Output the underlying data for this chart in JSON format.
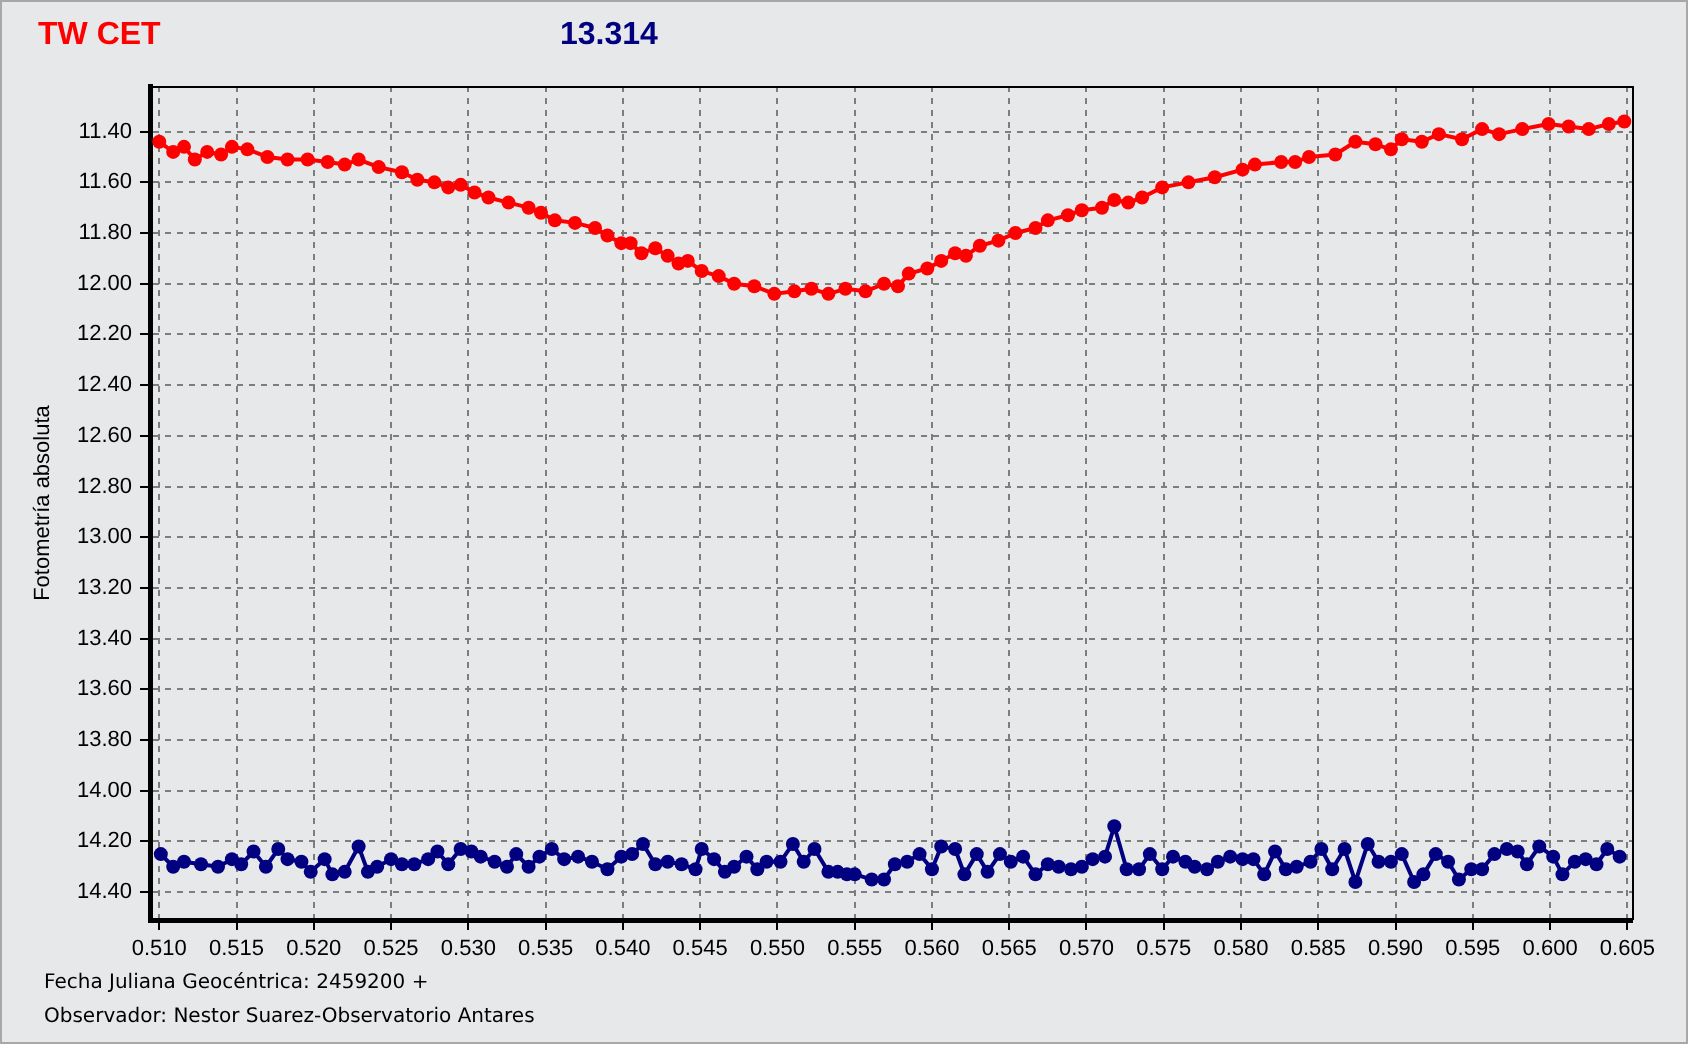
{
  "chart_data": {
    "type": "line",
    "title": "TW CET",
    "subtitle": "13.314",
    "ylabel": "Fotometría absoluta",
    "annotations": [
      "Fecha Juliana Geocéntrica: 2459200 +",
      "Observador: Nestor Suarez-Observatorio Antares"
    ],
    "xlim": [
      0.5094,
      0.6053
    ],
    "xticks": [
      {
        "value": 0.51,
        "label": "0.510"
      },
      {
        "value": 0.515,
        "label": "0.515"
      },
      {
        "value": 0.52,
        "label": "0.520"
      },
      {
        "value": 0.525,
        "label": "0.525"
      },
      {
        "value": 0.53,
        "label": "0.530"
      },
      {
        "value": 0.535,
        "label": "0.535"
      },
      {
        "value": 0.54,
        "label": "0.540"
      },
      {
        "value": 0.545,
        "label": "0.545"
      },
      {
        "value": 0.55,
        "label": "0.550"
      },
      {
        "value": 0.555,
        "label": "0.555"
      },
      {
        "value": 0.56,
        "label": "0.560"
      },
      {
        "value": 0.565,
        "label": "0.565"
      },
      {
        "value": 0.57,
        "label": "0.570"
      },
      {
        "value": 0.575,
        "label": "0.575"
      },
      {
        "value": 0.58,
        "label": "0.580"
      },
      {
        "value": 0.585,
        "label": "0.585"
      },
      {
        "value": 0.59,
        "label": "0.590"
      },
      {
        "value": 0.595,
        "label": "0.595"
      },
      {
        "value": 0.6,
        "label": "0.600"
      },
      {
        "value": 0.605,
        "label": "0.605"
      }
    ],
    "ylim": [
      14.51,
      11.22
    ],
    "yticks": [
      {
        "value": 11.4,
        "label": "11.40"
      },
      {
        "value": 11.6,
        "label": "11.60"
      },
      {
        "value": 11.8,
        "label": "11.80"
      },
      {
        "value": 12.0,
        "label": "12.00"
      },
      {
        "value": 12.2,
        "label": "12.20"
      },
      {
        "value": 12.4,
        "label": "12.40"
      },
      {
        "value": 12.6,
        "label": "12.60"
      },
      {
        "value": 12.8,
        "label": "12.80"
      },
      {
        "value": 13.0,
        "label": "13.00"
      },
      {
        "value": 13.2,
        "label": "13.20"
      },
      {
        "value": 13.4,
        "label": "13.40"
      },
      {
        "value": 13.6,
        "label": "13.60"
      },
      {
        "value": 13.8,
        "label": "13.80"
      },
      {
        "value": 14.0,
        "label": "14.00"
      },
      {
        "value": 14.2,
        "label": "14.20"
      },
      {
        "value": 14.4,
        "label": "14.40"
      }
    ],
    "grid": true,
    "marker": "circle",
    "line_style": "solid",
    "series": [
      {
        "color": "#ff0000",
        "x": [
          0.51,
          0.5109,
          0.5116,
          0.5123,
          0.5131,
          0.514,
          0.5147,
          0.5157,
          0.517,
          0.5183,
          0.5196,
          0.5209,
          0.522,
          0.5229,
          0.5242,
          0.5257,
          0.5267,
          0.5278,
          0.5287,
          0.5295,
          0.5304,
          0.5313,
          0.5326,
          0.5339,
          0.5347,
          0.5356,
          0.5369,
          0.5382,
          0.539,
          0.5399,
          0.5405,
          0.5412,
          0.5421,
          0.5429,
          0.5436,
          0.5442,
          0.5451,
          0.5462,
          0.5472,
          0.5485,
          0.5498,
          0.5511,
          0.5522,
          0.5533,
          0.5544,
          0.5557,
          0.5569,
          0.5578,
          0.5585,
          0.5597,
          0.5606,
          0.5615,
          0.5622,
          0.5631,
          0.5643,
          0.5654,
          0.5667,
          0.5675,
          0.5688,
          0.5697,
          0.571,
          0.5718,
          0.5727,
          0.5736,
          0.5749,
          0.5766,
          0.5783,
          0.5801,
          0.5809,
          0.5826,
          0.5835,
          0.5844,
          0.5861,
          0.5874,
          0.5887,
          0.5897,
          0.5904,
          0.5917,
          0.5928,
          0.5943,
          0.5956,
          0.5967,
          0.5982,
          0.5999,
          0.6012,
          0.6025,
          0.6038,
          0.6048
        ],
        "values": [
          11.44,
          11.48,
          11.46,
          11.51,
          11.48,
          11.49,
          11.46,
          11.47,
          11.5,
          11.51,
          11.51,
          11.52,
          11.53,
          11.51,
          11.54,
          11.56,
          11.59,
          11.6,
          11.62,
          11.61,
          11.64,
          11.66,
          11.68,
          11.7,
          11.72,
          11.75,
          11.76,
          11.78,
          11.81,
          11.84,
          11.84,
          11.88,
          11.86,
          11.89,
          11.92,
          11.91,
          11.95,
          11.97,
          12.0,
          12.01,
          12.04,
          12.03,
          12.02,
          12.04,
          12.02,
          12.03,
          12.0,
          12.01,
          11.96,
          11.94,
          11.91,
          11.88,
          11.89,
          11.85,
          11.83,
          11.8,
          11.78,
          11.75,
          11.73,
          11.71,
          11.7,
          11.67,
          11.68,
          11.66,
          11.62,
          11.6,
          11.58,
          11.55,
          11.53,
          11.52,
          11.52,
          11.5,
          11.49,
          11.44,
          11.45,
          11.47,
          11.43,
          11.44,
          11.41,
          11.43,
          11.39,
          11.41,
          11.39,
          11.37,
          11.38,
          11.39,
          11.37,
          11.36
        ]
      },
      {
        "color": "#000080",
        "x": [
          0.5101,
          0.5109,
          0.5116,
          0.5127,
          0.5138,
          0.5147,
          0.5153,
          0.5161,
          0.5169,
          0.5177,
          0.5183,
          0.5192,
          0.5198,
          0.5207,
          0.5212,
          0.522,
          0.5229,
          0.5235,
          0.5241,
          0.525,
          0.5257,
          0.5265,
          0.5274,
          0.528,
          0.5287,
          0.5295,
          0.5302,
          0.5308,
          0.5317,
          0.5325,
          0.5331,
          0.5339,
          0.5346,
          0.5354,
          0.5362,
          0.5371,
          0.538,
          0.539,
          0.5399,
          0.5406,
          0.5413,
          0.5421,
          0.5429,
          0.5438,
          0.5447,
          0.5451,
          0.5459,
          0.5466,
          0.5472,
          0.548,
          0.5487,
          0.5493,
          0.5502,
          0.551,
          0.5517,
          0.5524,
          0.5533,
          0.5539,
          0.5545,
          0.555,
          0.5561,
          0.5569,
          0.5576,
          0.5584,
          0.5592,
          0.56,
          0.5606,
          0.5615,
          0.5621,
          0.5629,
          0.5636,
          0.5644,
          0.5651,
          0.5659,
          0.5667,
          0.5675,
          0.5682,
          0.569,
          0.5697,
          0.5704,
          0.5712,
          0.5718,
          0.5726,
          0.5734,
          0.5741,
          0.5749,
          0.5756,
          0.5764,
          0.577,
          0.5778,
          0.5785,
          0.5793,
          0.5801,
          0.5808,
          0.5815,
          0.5822,
          0.5829,
          0.5836,
          0.5845,
          0.5852,
          0.5859,
          0.5867,
          0.5874,
          0.5882,
          0.5889,
          0.5897,
          0.5904,
          0.5912,
          0.5918,
          0.5926,
          0.5934,
          0.5941,
          0.5949,
          0.5956,
          0.5964,
          0.5972,
          0.5979,
          0.5985,
          0.5993,
          0.6002,
          0.6008,
          0.6016,
          0.6023,
          0.603,
          0.6037,
          0.6045
        ],
        "values": [
          14.25,
          14.3,
          14.28,
          14.29,
          14.3,
          14.27,
          14.29,
          14.24,
          14.3,
          14.23,
          14.27,
          14.28,
          14.32,
          14.27,
          14.33,
          14.32,
          14.22,
          14.32,
          14.3,
          14.27,
          14.29,
          14.29,
          14.27,
          14.24,
          14.29,
          14.23,
          14.24,
          14.26,
          14.28,
          14.3,
          14.25,
          14.3,
          14.26,
          14.23,
          14.27,
          14.26,
          14.28,
          14.31,
          14.26,
          14.25,
          14.21,
          14.29,
          14.28,
          14.29,
          14.31,
          14.23,
          14.27,
          14.32,
          14.3,
          14.26,
          14.31,
          14.28,
          14.28,
          14.21,
          14.28,
          14.23,
          14.32,
          14.32,
          14.33,
          14.33,
          14.35,
          14.35,
          14.29,
          14.28,
          14.25,
          14.31,
          14.22,
          14.23,
          14.33,
          14.25,
          14.32,
          14.25,
          14.28,
          14.26,
          14.33,
          14.29,
          14.3,
          14.31,
          14.3,
          14.27,
          14.26,
          14.14,
          14.31,
          14.31,
          14.25,
          14.31,
          14.26,
          14.28,
          14.3,
          14.31,
          14.28,
          14.26,
          14.27,
          14.27,
          14.33,
          14.24,
          14.31,
          14.3,
          14.28,
          14.23,
          14.31,
          14.23,
          14.36,
          14.21,
          14.28,
          14.28,
          14.25,
          14.36,
          14.33,
          14.25,
          14.28,
          14.35,
          14.31,
          14.31,
          14.25,
          14.23,
          14.24,
          14.29,
          14.22,
          14.26,
          14.33,
          14.28,
          14.27,
          14.29,
          14.23,
          14.26
        ]
      }
    ]
  }
}
